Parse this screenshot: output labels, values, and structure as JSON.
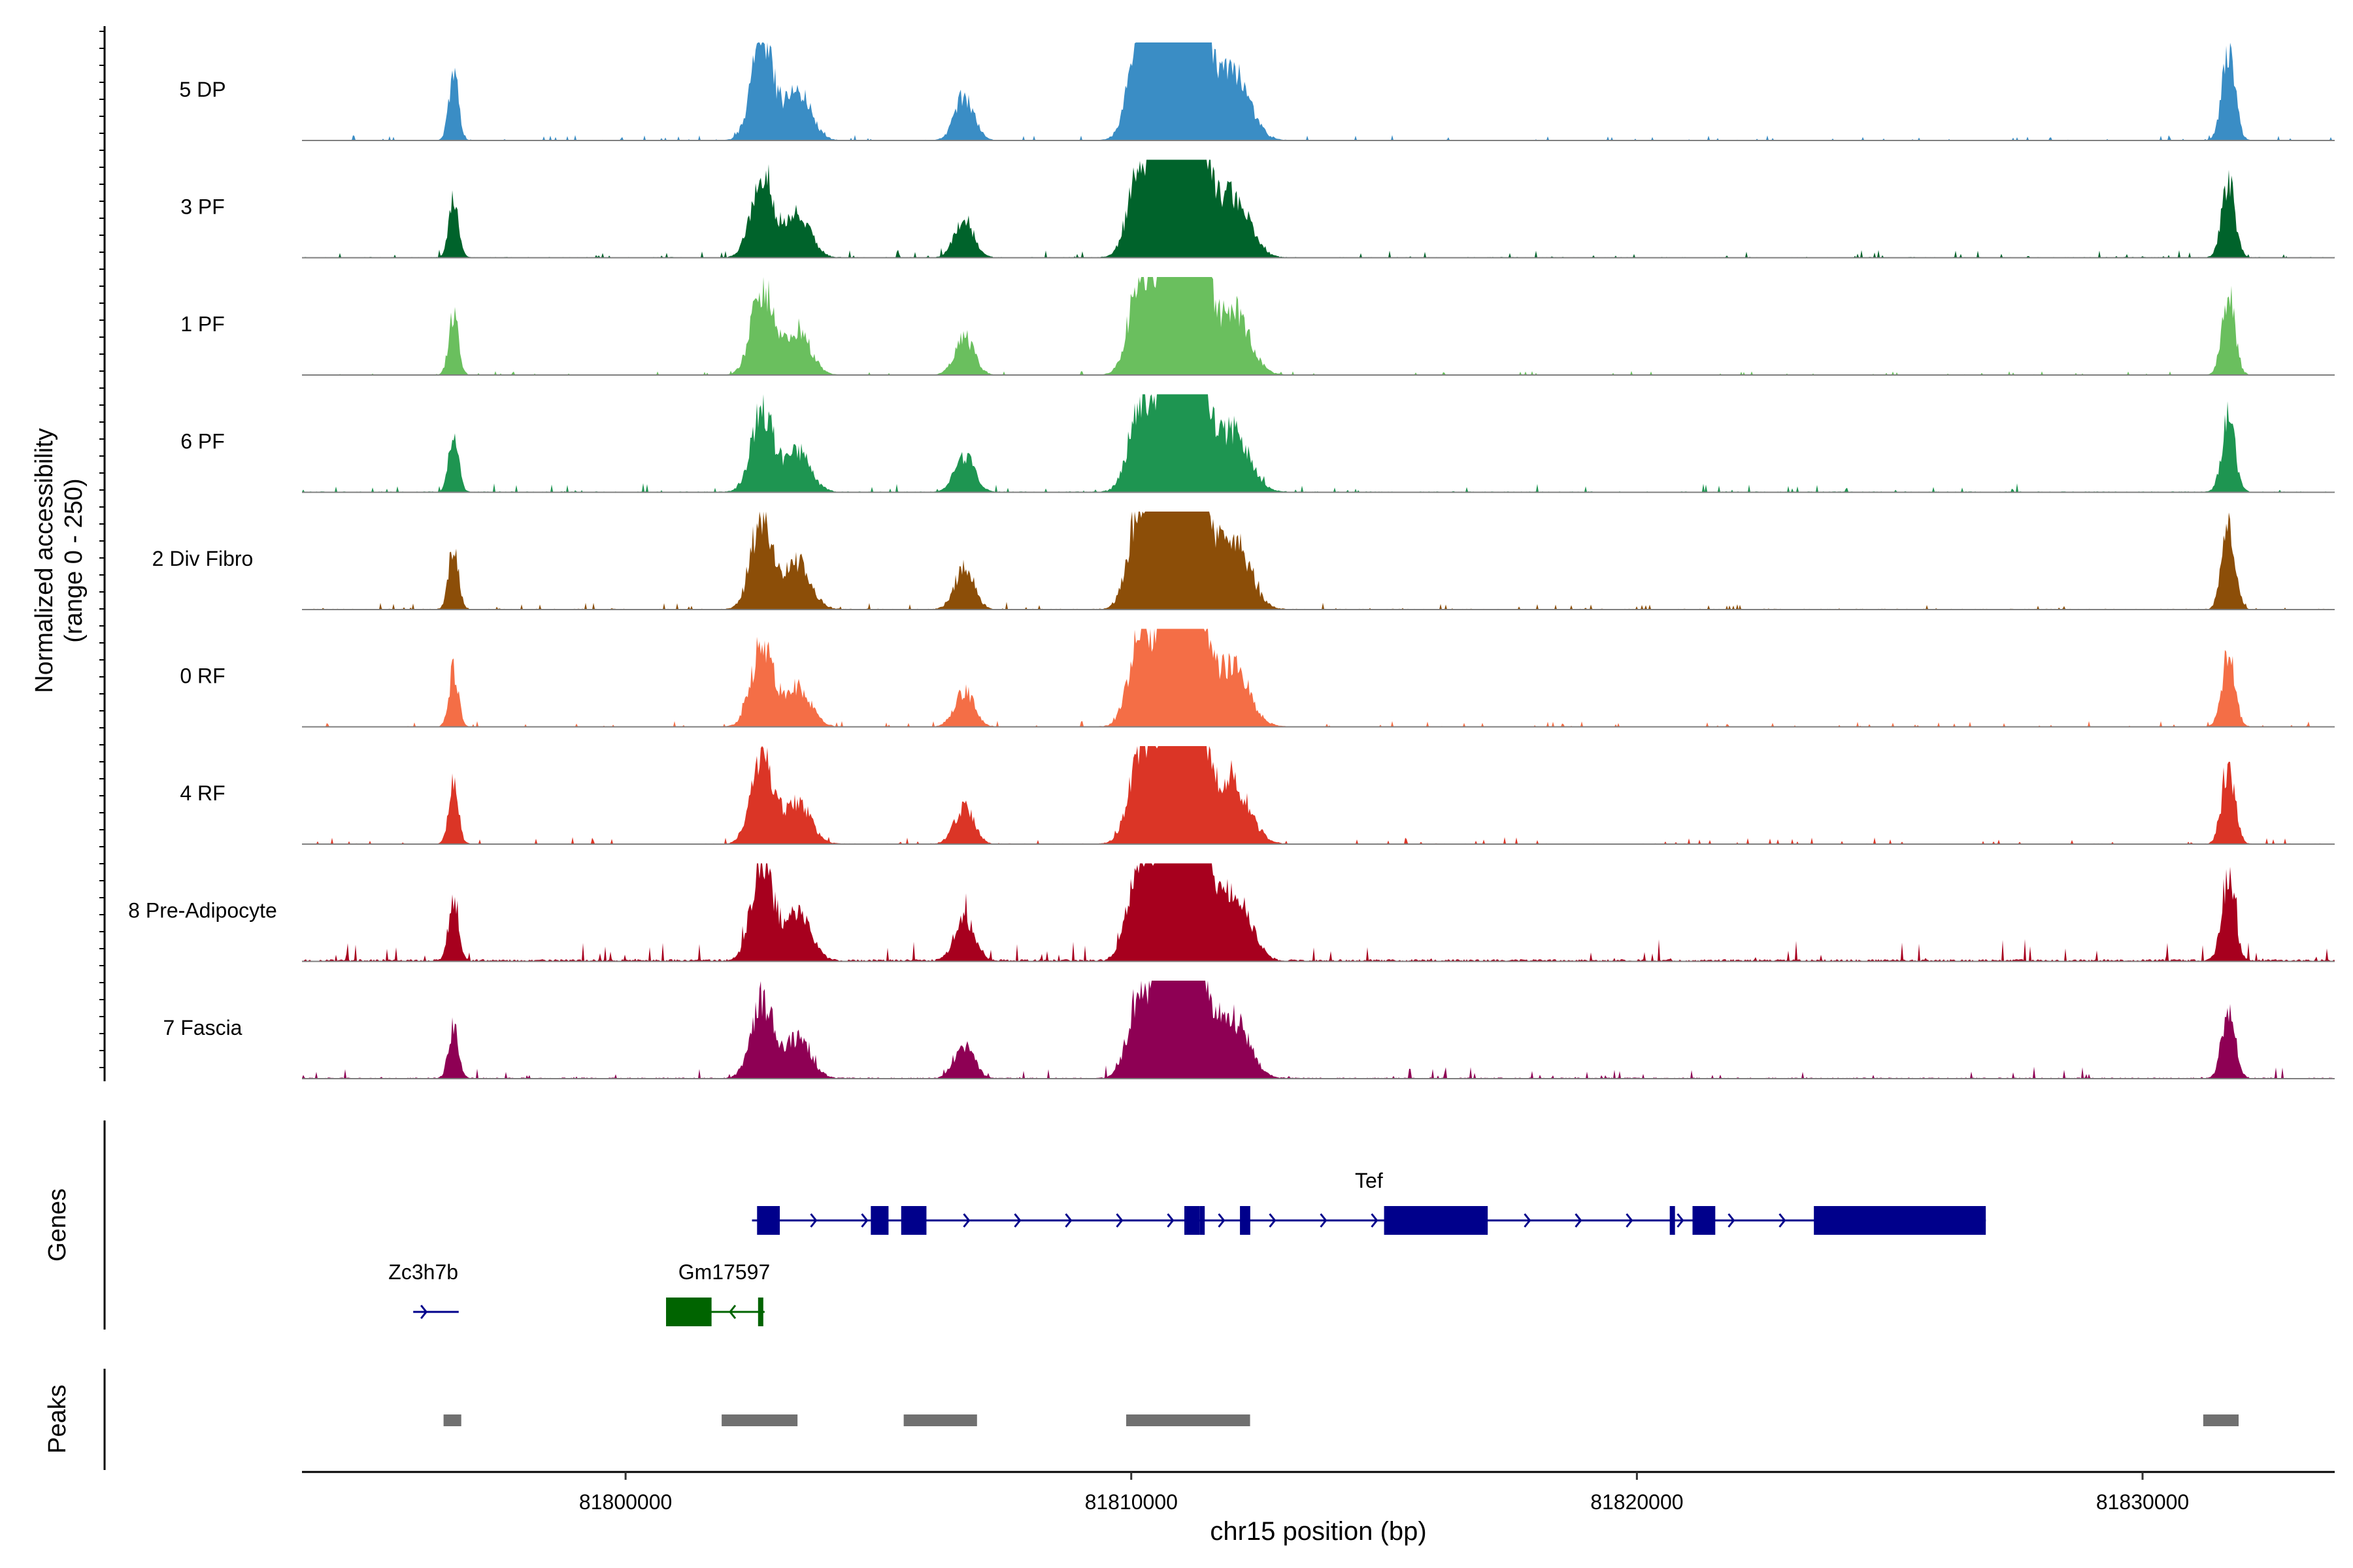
{
  "chart_data": {
    "type": "area",
    "title": "",
    "ylabel_line1": "Normalized accessibility",
    "ylabel_line2": "(range 0 - 250)",
    "yrange": [
      0,
      250
    ],
    "xlabel": "chr15 position (bp)",
    "xlim": [
      81793600,
      81833800
    ],
    "xticks": [
      81800000,
      81810000,
      81820000,
      81830000
    ],
    "xtick_labels": [
      "81800000",
      "81810000",
      "81820000",
      "81830000"
    ],
    "genes_label": "Genes",
    "peaks_label": "Peaks",
    "tracks": [
      {
        "name": "5 DP",
        "color": "#3A8DC5",
        "scale": 1.0,
        "noise": 0.6
      },
      {
        "name": "3 PF",
        "color": "#00632B",
        "scale": 0.86,
        "noise": 1.0
      },
      {
        "name": "1 PF",
        "color": "#6ABF5E",
        "scale": 0.88,
        "noise": 0.5
      },
      {
        "name": "6 PF",
        "color": "#1E9551",
        "scale": 0.83,
        "noise": 1.2
      },
      {
        "name": "2 Div Fibro",
        "color": "#8C4E08",
        "scale": 0.96,
        "noise": 0.9
      },
      {
        "name": "0 RF",
        "color": "#F46E46",
        "scale": 0.82,
        "noise": 0.8
      },
      {
        "name": "4 RF",
        "color": "#DB3526",
        "scale": 0.86,
        "noise": 0.9
      },
      {
        "name": "8 Pre-Adipocyte",
        "color": "#A7001E",
        "scale": 0.98,
        "noise": 2.4
      },
      {
        "name": "7 Fascia",
        "color": "#8E0054",
        "scale": 0.8,
        "noise": 1.6
      }
    ],
    "peaks_bp": [
      [
        81796400,
        81796750
      ],
      [
        81801900,
        81803400
      ],
      [
        81805500,
        81806950
      ],
      [
        81809900,
        81812350
      ],
      [
        81831200,
        81831900
      ]
    ],
    "genes": [
      {
        "name": "Tef",
        "strand": "+",
        "color": "#00008B",
        "start": 81802500,
        "end": 81826900,
        "label_pos": 81814700,
        "exons": [
          [
            81802600,
            81803050
          ],
          [
            81804850,
            81805200
          ],
          [
            81805450,
            81805950
          ],
          [
            81811050,
            81811350
          ],
          [
            81815000,
            81817050
          ],
          [
            81821100,
            81821550
          ],
          [
            81823500,
            81826900
          ]
        ],
        "thin_exons": [
          81811050,
          81811350,
          81812150,
          81812250,
          81820650
        ]
      },
      {
        "name": "Zc3h7b",
        "strand": "+",
        "color": "#00008B",
        "start": 81795800,
        "end": 81796700,
        "label_pos": 81796000,
        "exons": [],
        "thin_exons": []
      },
      {
        "name": "Gm17597",
        "strand": "-",
        "color": "#006400",
        "start": 81800800,
        "end": 81802750,
        "label_pos": 81801950,
        "exons": [
          [
            81800800,
            81801700
          ]
        ],
        "thin_exons": [
          81802620
        ]
      }
    ]
  }
}
